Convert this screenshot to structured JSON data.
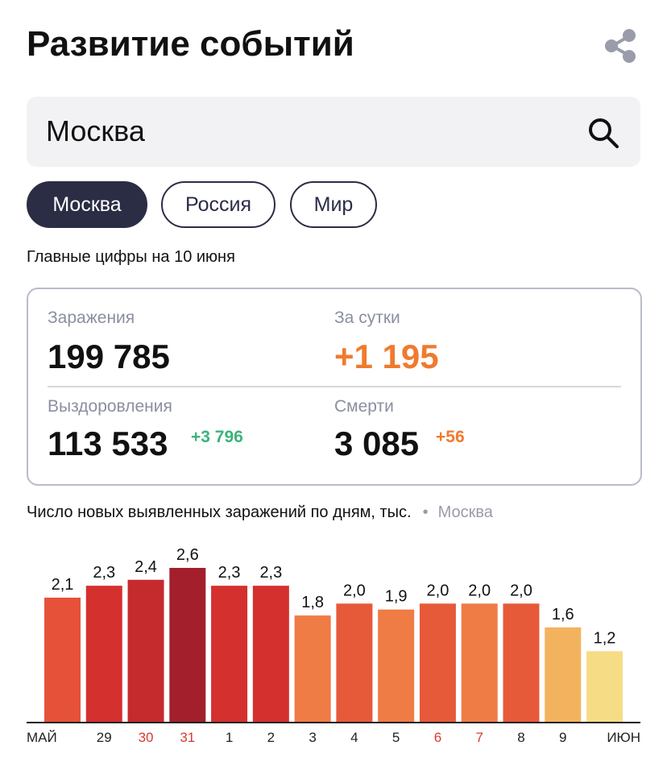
{
  "header": {
    "title": "Развитие событий"
  },
  "search": {
    "value": "Москва"
  },
  "tabs": [
    "Москва",
    "Россия",
    "Мир"
  ],
  "subtitle": "Главные цифры на 10 июня",
  "stats": {
    "infections": {
      "label": "Заражения",
      "value": "199 785"
    },
    "daily": {
      "label": "За сутки",
      "value": "+1 195"
    },
    "recovered": {
      "label": "Выздоровления",
      "value": "113 533",
      "delta": "+3 796"
    },
    "deaths": {
      "label": "Смерти",
      "value": "3 085",
      "delta": "+56"
    }
  },
  "chart_data": {
    "type": "bar",
    "title": "Число новых выявленных заражений по дням, тыс.",
    "region": "Москва",
    "categories": [
      "МАЙ",
      "29",
      "30",
      "31",
      "1",
      "2",
      "3",
      "4",
      "5",
      "6",
      "7",
      "8",
      "9",
      "ИЮН"
    ],
    "category_colors": [
      "#222",
      "#222",
      "#d63a2f",
      "#d63a2f",
      "#222",
      "#222",
      "#222",
      "#222",
      "#222",
      "#d63a2f",
      "#d63a2f",
      "#222",
      "#222",
      "#222"
    ],
    "values": [
      2.1,
      2.3,
      2.4,
      2.6,
      2.3,
      2.3,
      1.8,
      2.0,
      1.9,
      2.0,
      2.0,
      2.0,
      1.6,
      1.2
    ],
    "value_labels": [
      "2,1",
      "2,3",
      "2,4",
      "2,6",
      "2,3",
      "2,3",
      "1,8",
      "2,0",
      "1,9",
      "2,0",
      "2,0",
      "2,0",
      "1,6",
      "1,2"
    ],
    "colors": [
      "#e6513a",
      "#d4302e",
      "#c52a2c",
      "#a21f2b",
      "#d4302e",
      "#d4302e",
      "#ef7b45",
      "#e65a3a",
      "#ef7b45",
      "#e65a3a",
      "#ef7b45",
      "#e65a3a",
      "#f3b35e",
      "#f7dc86"
    ]
  }
}
